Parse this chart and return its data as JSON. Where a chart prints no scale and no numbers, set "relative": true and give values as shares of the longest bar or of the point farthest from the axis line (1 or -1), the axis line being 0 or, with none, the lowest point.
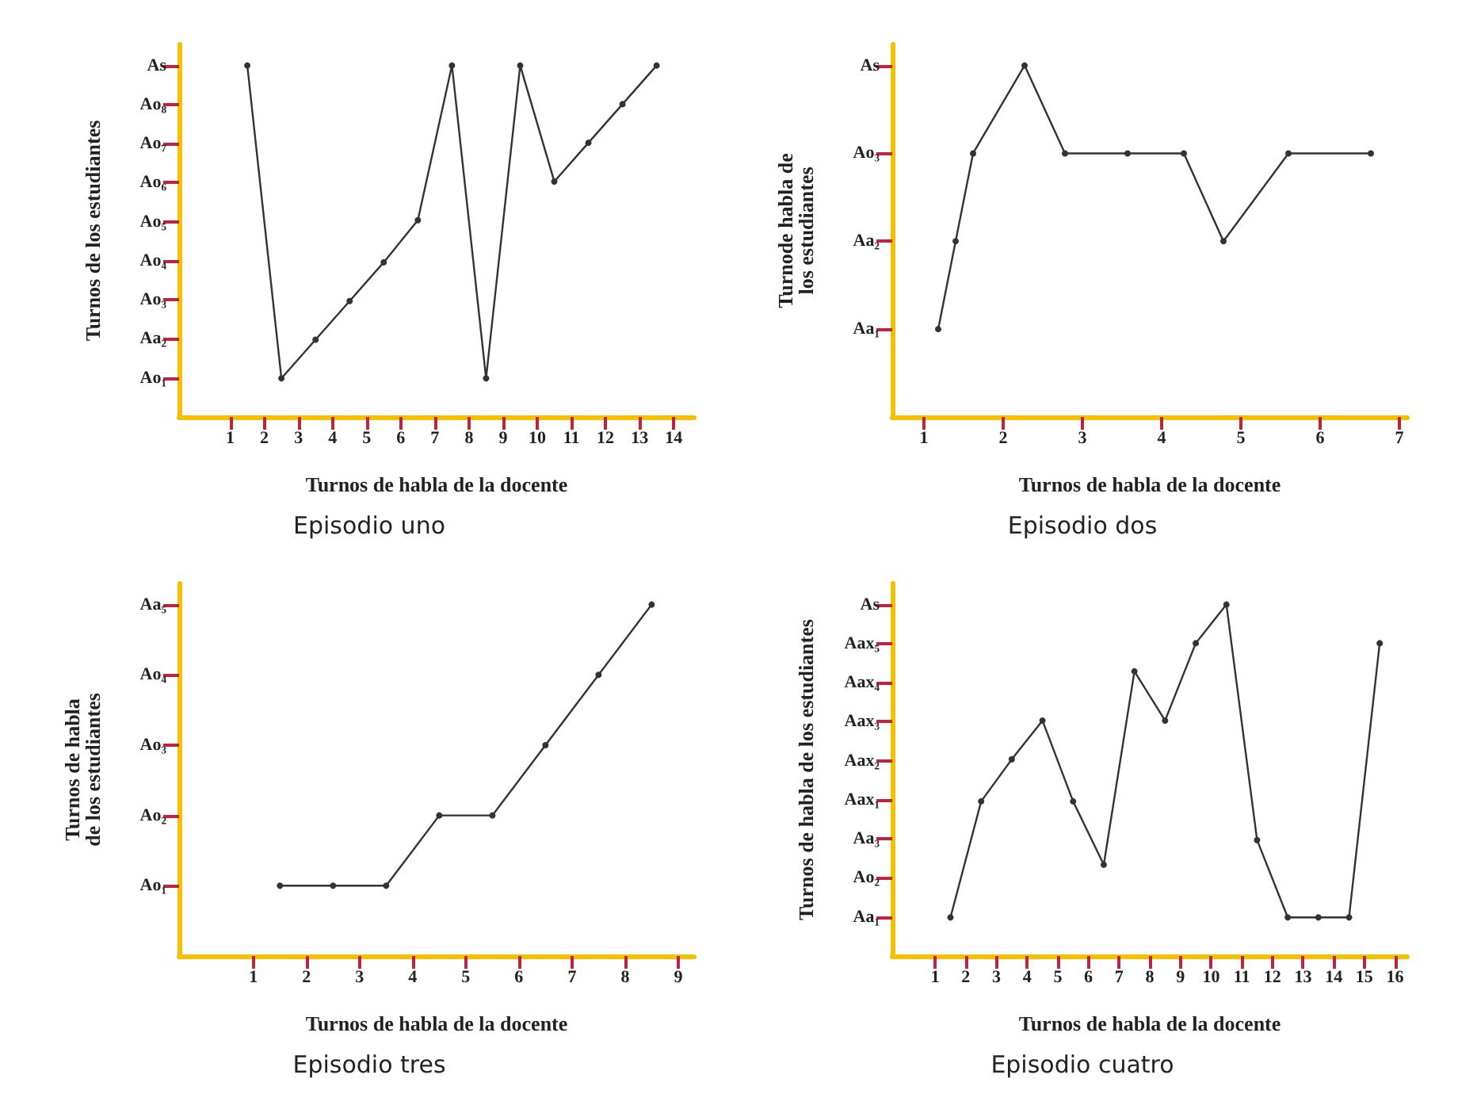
{
  "chart_data": [
    {
      "type": "line",
      "title": "Episodio uno",
      "xlabel": "Turnos de habla de la docente",
      "ylabel": "Turnos de los estudiantes",
      "marker": "circle",
      "grid": false,
      "relative": true,
      "annotations": [
        "Ao₁",
        "Aa₂",
        "Ao₃",
        "Ao₄",
        "Ao₅",
        "Ao₆",
        "Ao₇",
        "Ao₈",
        "As"
      ],
      "series": [
        {
          "color": "#333333",
          "x": [
            1.5,
            2.5,
            3.5,
            4.5,
            5.5,
            6.5,
            7.5,
            8.5,
            9.5,
            10.5,
            11.5,
            12.5,
            13.5
          ],
          "values": [
            1,
            0.11,
            0.22,
            0.33,
            0.44,
            0.56,
            1,
            0.11,
            1,
            0.67,
            0.78,
            0.89,
            1
          ]
        }
      ],
      "xlim": [
        -0.5,
        14.6
      ],
      "xticks": [
        1,
        2,
        3,
        4,
        5,
        6,
        7,
        8,
        9,
        10,
        11,
        12,
        13,
        14
      ]
    },
    {
      "type": "line",
      "title": "Episodio dos",
      "xlabel": "Turnos de habla de la docente",
      "ylabel": "Turnode habla de\nlos estudiantes",
      "marker": "circle",
      "grid": false,
      "relative": true,
      "annotations": [
        "Aa₁",
        "Aa₂",
        "Ao₃",
        "As"
      ],
      "series": [
        {
          "color": "#333333",
          "x": [
            1.18,
            1.4,
            1.62,
            2.27,
            2.78,
            3.57,
            4.28,
            4.78,
            5.6,
            6.64
          ],
          "values": [
            0.25,
            0.5,
            0.75,
            1,
            0.75,
            0.75,
            0.75,
            0.5,
            0.75,
            0.75
          ]
        }
      ],
      "xlim": [
        0.6,
        7.1
      ],
      "xticks": [
        1,
        2,
        3,
        4,
        5,
        6,
        7
      ]
    },
    {
      "type": "line",
      "title": "Episodio tres",
      "xlabel": "Turnos de habla de la docente",
      "ylabel": "Turnos de habla\nde los estudiantes",
      "marker": "circle",
      "grid": false,
      "relative": true,
      "annotations": [
        "Ao₁",
        "Ao₂",
        "Ao₃",
        "Ao₄",
        "Aa₅"
      ],
      "series": [
        {
          "color": "#333333",
          "x": [
            1.5,
            2.5,
            3.5,
            4.5,
            5.5,
            6.5,
            7.5,
            8.5
          ],
          "values": [
            0.2,
            0.2,
            0.2,
            0.4,
            0.4,
            0.6,
            0.8,
            1
          ]
        }
      ],
      "xlim": [
        -0.4,
        9.3
      ],
      "xticks": [
        1,
        2,
        3,
        4,
        5,
        6,
        7,
        8,
        9
      ]
    },
    {
      "type": "line",
      "title": "Episodio cuatro",
      "xlabel": "Turnos de habla de la docente",
      "ylabel": "Turnos de habla de los estudiantes",
      "marker": "circle",
      "grid": false,
      "relative": true,
      "annotations": [
        "Aa₁",
        "Ao₂",
        "Aa₃",
        "Aax₁",
        "Aax₂",
        "Aax₃",
        "Aax₄",
        "Aax₅",
        "As"
      ],
      "series": [
        {
          "color": "#333333",
          "x": [
            1.5,
            2.5,
            3.5,
            4.5,
            5.5,
            6.5,
            7.5,
            8.5,
            9.5,
            10.5,
            11.5,
            12.5,
            13.5,
            14.5,
            15.5
          ],
          "values": [
            0.11,
            0.44,
            0.56,
            0.67,
            0.44,
            0.26,
            0.81,
            0.67,
            0.89,
            1,
            0.33,
            0.11,
            0.11,
            0.11,
            0.89
          ]
        }
      ],
      "xlim": [
        -0.4,
        16.4
      ],
      "xticks": [
        1,
        2,
        3,
        4,
        5,
        6,
        7,
        8,
        9,
        10,
        11,
        12,
        13,
        14,
        15,
        16
      ]
    }
  ]
}
